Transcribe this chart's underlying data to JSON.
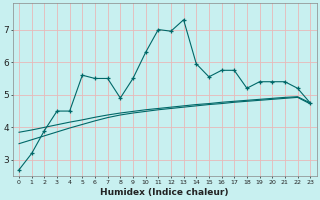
{
  "title": "",
  "xlabel": "Humidex (Indice chaleur)",
  "ylabel": "",
  "x": [
    0,
    1,
    2,
    3,
    4,
    5,
    6,
    7,
    8,
    9,
    10,
    11,
    12,
    13,
    14,
    15,
    16,
    17,
    18,
    19,
    20,
    21,
    22,
    23
  ],
  "y_main": [
    2.7,
    3.2,
    3.9,
    4.5,
    4.5,
    5.6,
    5.5,
    5.5,
    4.9,
    5.5,
    6.3,
    7.0,
    6.95,
    7.3,
    5.95,
    5.55,
    5.75,
    5.75,
    5.2,
    5.4,
    5.4,
    5.4,
    5.2,
    4.75
  ],
  "y_reg1": [
    3.85,
    3.92,
    4.0,
    4.08,
    4.16,
    4.23,
    4.31,
    4.38,
    4.44,
    4.49,
    4.54,
    4.58,
    4.62,
    4.66,
    4.7,
    4.73,
    4.77,
    4.8,
    4.83,
    4.86,
    4.89,
    4.92,
    4.94,
    4.75
  ],
  "y_reg2": [
    3.5,
    3.62,
    3.74,
    3.86,
    3.98,
    4.09,
    4.2,
    4.3,
    4.38,
    4.44,
    4.49,
    4.54,
    4.58,
    4.62,
    4.66,
    4.7,
    4.73,
    4.77,
    4.8,
    4.83,
    4.86,
    4.89,
    4.92,
    4.72
  ],
  "bg_color": "#c8f0f0",
  "line_color": "#006868",
  "grid_color": "#e8b8b8",
  "ylim": [
    2.5,
    7.8
  ],
  "xlim": [
    -0.5,
    23.5
  ],
  "figw": 3.2,
  "figh": 2.0,
  "dpi": 100
}
